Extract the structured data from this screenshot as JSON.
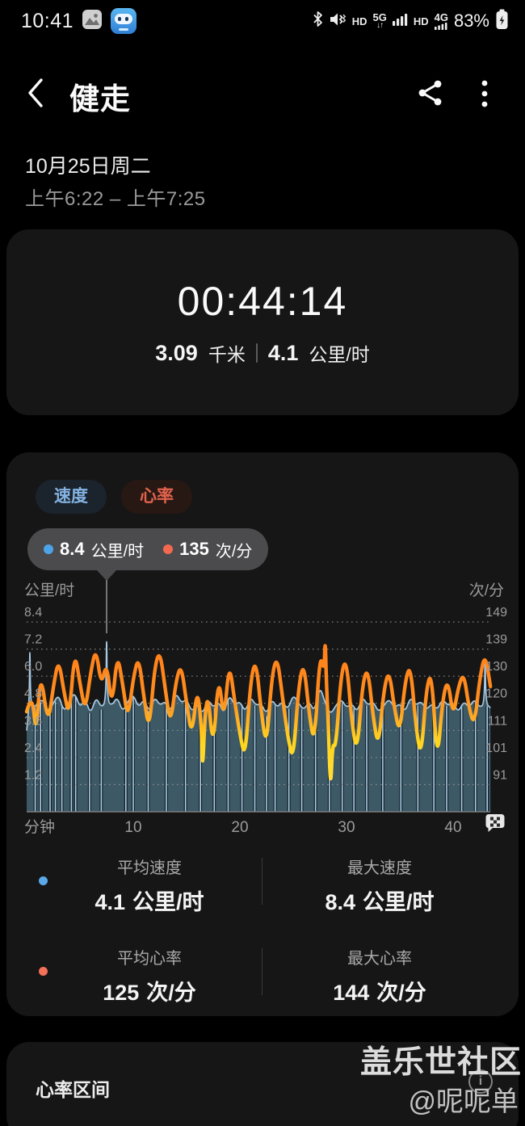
{
  "status_bar": {
    "time": "10:41",
    "battery_percent": "83%",
    "hd1": "HD",
    "net1": "5G",
    "net1_arrows": "↓↑",
    "hd2": "HD",
    "net2": "4G"
  },
  "header": {
    "title": "健走"
  },
  "session": {
    "date": "10月25日周二",
    "time_range": "上午6:22  –  上午7:25"
  },
  "summary": {
    "duration": "00:44:14",
    "distance_value": "3.09",
    "distance_unit": "千米",
    "speed_value": "4.1",
    "speed_unit": "公里/时"
  },
  "chart_card": {
    "tabs": [
      {
        "label": "速度"
      },
      {
        "label": "心率"
      }
    ],
    "tooltip": {
      "speed_value": "8.4",
      "speed_unit": "公里/时",
      "hr_value": "135",
      "hr_unit": "次/分"
    },
    "left_axis_unit": "公里/时",
    "right_axis_unit": "次/分",
    "x_axis_unit": "分钟"
  },
  "chart_data": {
    "type": "line",
    "x_unit": "分钟",
    "x_ticks": [
      "10",
      "20",
      "30",
      "40"
    ],
    "x_range": [
      0,
      43.5
    ],
    "left_axis": {
      "unit": "公里/时",
      "ticks": [
        "8.4",
        "7.2",
        "6.0",
        "4.8",
        "3.6",
        "2.4",
        "1.2"
      ],
      "range": [
        0,
        8.4
      ]
    },
    "right_axis": {
      "unit": "次/分",
      "ticks": [
        "149",
        "139",
        "130",
        "120",
        "111",
        "101",
        "91"
      ],
      "range": [
        81,
        149
      ]
    },
    "legend_position": "top-left-tooltip",
    "grid": "dotted-horizontal",
    "selected_point": {
      "t": 7.5,
      "speed": 8.4,
      "hr": 135
    },
    "series": [
      {
        "name": "速度",
        "unit": "公里/时",
        "color": "#a7cbe8",
        "area_color": "#3d5966",
        "points": [
          [
            0,
            3.6
          ],
          [
            0.24,
            4.5
          ],
          [
            0.3,
            7.9
          ],
          [
            0.36,
            4.4
          ],
          [
            1,
            4.8
          ],
          [
            1.5,
            5.0
          ],
          [
            2,
            4.4
          ],
          [
            2.5,
            4.8
          ],
          [
            3,
            5.2
          ],
          [
            3.5,
            4.4
          ],
          [
            4,
            4.9
          ],
          [
            4.5,
            5.3
          ],
          [
            5,
            4.6
          ],
          [
            5.5,
            5.0
          ],
          [
            6,
            4.3
          ],
          [
            6.5,
            5.1
          ],
          [
            7,
            4.6
          ],
          [
            7.44,
            4.9
          ],
          [
            7.5,
            8.4
          ],
          [
            7.56,
            4.9
          ],
          [
            8,
            4.7
          ],
          [
            8.5,
            5.1
          ],
          [
            9,
            4.4
          ],
          [
            9.5,
            4.9
          ],
          [
            10,
            5.2
          ],
          [
            10.5,
            4.6
          ],
          [
            11,
            5.0
          ],
          [
            11.5,
            4.4
          ],
          [
            12,
            5.1
          ],
          [
            12.5,
            4.7
          ],
          [
            13,
            4.9
          ],
          [
            13.5,
            4.4
          ],
          [
            14,
            5.3
          ],
          [
            14.5,
            4.8
          ],
          [
            15,
            5.0
          ],
          [
            15.5,
            4.4
          ],
          [
            16,
            4.8
          ],
          [
            16.5,
            4.3
          ],
          [
            17,
            5.0
          ],
          [
            17.5,
            4.6
          ],
          [
            18,
            4.9
          ],
          [
            18.5,
            4.3
          ],
          [
            19,
            5.2
          ],
          [
            19.5,
            4.7
          ],
          [
            20,
            4.9
          ],
          [
            20.5,
            4.4
          ],
          [
            21,
            5.1
          ],
          [
            21.5,
            4.7
          ],
          [
            22,
            4.8
          ],
          [
            22.5,
            4.3
          ],
          [
            23,
            5.0
          ],
          [
            23.5,
            4.6
          ],
          [
            24,
            4.9
          ],
          [
            24.5,
            4.5
          ],
          [
            25,
            5.2
          ],
          [
            25.5,
            4.8
          ],
          [
            26,
            4.5
          ],
          [
            26.5,
            4.9
          ],
          [
            27,
            4.4
          ],
          [
            27.5,
            5.6
          ],
          [
            28,
            4.8
          ],
          [
            28.5,
            4.3
          ],
          [
            29,
            4.7
          ],
          [
            29.5,
            5.0
          ],
          [
            30,
            4.6
          ],
          [
            30.5,
            4.8
          ],
          [
            31,
            4.4
          ],
          [
            31.5,
            5.1
          ],
          [
            32,
            4.7
          ],
          [
            32.5,
            4.9
          ],
          [
            33,
            4.4
          ],
          [
            33.5,
            4.7
          ],
          [
            34,
            5.0
          ],
          [
            34.5,
            4.6
          ],
          [
            35,
            4.8
          ],
          [
            35.5,
            4.4
          ],
          [
            36,
            5.1
          ],
          [
            36.5,
            4.7
          ],
          [
            37,
            4.9
          ],
          [
            37.5,
            4.5
          ],
          [
            38,
            4.8
          ],
          [
            38.5,
            4.5
          ],
          [
            39,
            5.0
          ],
          [
            39.5,
            4.7
          ],
          [
            40,
            4.8
          ],
          [
            40.5,
            4.4
          ],
          [
            41,
            4.9
          ],
          [
            41.5,
            4.6
          ],
          [
            42,
            5.0
          ],
          [
            42.5,
            4.6
          ],
          [
            42.94,
            4.8
          ],
          [
            43,
            7.4
          ],
          [
            43.06,
            4.8
          ],
          [
            43.5,
            4.6
          ]
        ],
        "dropout_times": [
          0.8,
          1.3,
          2.2,
          2.7,
          3.3,
          4.2,
          4.6,
          5.9,
          7.0,
          9.3,
          10.0,
          11.4,
          13.1,
          14.9,
          16.3,
          17.6,
          18.9,
          20.2,
          21.4,
          22.5,
          23.3,
          24.6,
          25.8,
          27.1,
          28.4,
          29.6,
          30.7,
          31.9,
          33.4,
          35.1,
          36.7,
          38.2,
          39.4,
          40.8,
          42.1,
          43.2
        ]
      },
      {
        "name": "心率",
        "unit": "次/分",
        "color_high": "#ff8a1e",
        "color_low": "#ffd21e",
        "gradient": [
          [
            "0",
            "#ff7a18"
          ],
          [
            "0.45",
            "#ff8d1e"
          ],
          [
            "0.58",
            "#ffb124"
          ],
          [
            "0.70",
            "#ffd51f"
          ],
          [
            "1",
            "#ffdf42"
          ]
        ],
        "points": [
          [
            0,
            117
          ],
          [
            0.5,
            124
          ],
          [
            0.9,
            108
          ],
          [
            1.3,
            132
          ],
          [
            2,
            112
          ],
          [
            2.5,
            126
          ],
          [
            3,
            136
          ],
          [
            3.5,
            124
          ],
          [
            4,
            115
          ],
          [
            4.5,
            139
          ],
          [
            5,
            127
          ],
          [
            5.5,
            117
          ],
          [
            6,
            131
          ],
          [
            6.5,
            140
          ],
          [
            7,
            126
          ],
          [
            7.5,
            135
          ],
          [
            8,
            118
          ],
          [
            8.5,
            138
          ],
          [
            9,
            127
          ],
          [
            9.5,
            114
          ],
          [
            10,
            129
          ],
          [
            10.5,
            137
          ],
          [
            11,
            122
          ],
          [
            11.5,
            110
          ],
          [
            12,
            133
          ],
          [
            12.5,
            139
          ],
          [
            13,
            125
          ],
          [
            13.5,
            112
          ],
          [
            14,
            128
          ],
          [
            14.5,
            134
          ],
          [
            15,
            120
          ],
          [
            15.5,
            108
          ],
          [
            16,
            126
          ],
          [
            16.4,
            112
          ],
          [
            16.5,
            95
          ],
          [
            16.7,
            114
          ],
          [
            17,
            124
          ],
          [
            17.5,
            103
          ],
          [
            18,
            131
          ],
          [
            18.5,
            113
          ],
          [
            19,
            135
          ],
          [
            19.5,
            121
          ],
          [
            20,
            109
          ],
          [
            20.5,
            100
          ],
          [
            21,
            128
          ],
          [
            21.5,
            136
          ],
          [
            22,
            117
          ],
          [
            22.5,
            104
          ],
          [
            23,
            130
          ],
          [
            23.5,
            137
          ],
          [
            24,
            122
          ],
          [
            24.5,
            108
          ],
          [
            25,
            99
          ],
          [
            25.5,
            126
          ],
          [
            26,
            135
          ],
          [
            26.5,
            116
          ],
          [
            27,
            105
          ],
          [
            27.5,
            138
          ],
          [
            27.9,
            131
          ],
          [
            28,
            144
          ],
          [
            28.1,
            129
          ],
          [
            28.3,
            112
          ],
          [
            28.5,
            88
          ],
          [
            28.7,
            106
          ],
          [
            29,
            104
          ],
          [
            29.5,
            131
          ],
          [
            30,
            136
          ],
          [
            30.5,
            113
          ],
          [
            31,
            102
          ],
          [
            31.5,
            127
          ],
          [
            32,
            133
          ],
          [
            32.5,
            115
          ],
          [
            33,
            104
          ],
          [
            33.5,
            125
          ],
          [
            34,
            132
          ],
          [
            34.5,
            118
          ],
          [
            35,
            109
          ],
          [
            35.5,
            128
          ],
          [
            36,
            134
          ],
          [
            36.5,
            112
          ],
          [
            37,
            100
          ],
          [
            37.5,
            126
          ],
          [
            38,
            131
          ],
          [
            38.5,
            98
          ],
          [
            39,
            121
          ],
          [
            39.5,
            129
          ],
          [
            40,
            115
          ],
          [
            40.5,
            126
          ],
          [
            41,
            131
          ],
          [
            41.5,
            118
          ],
          [
            42,
            112
          ],
          [
            42.5,
            129
          ],
          [
            43,
            138
          ],
          [
            43.5,
            126
          ]
        ]
      }
    ]
  },
  "stats": {
    "rows": [
      {
        "series": "速度",
        "dot_color": "#5ba8e8",
        "cells": [
          {
            "label": "平均速度",
            "value": "4.1",
            "unit": "公里/时"
          },
          {
            "label": "最大速度",
            "value": "8.4",
            "unit": "公里/时"
          }
        ]
      },
      {
        "series": "心率",
        "dot_color": "#f37059",
        "cells": [
          {
            "label": "平均心率",
            "value": "125",
            "unit": "次/分"
          },
          {
            "label": "最大心率",
            "value": "144",
            "unit": "次/分"
          }
        ]
      }
    ]
  },
  "hr_zones_card": {
    "title": "心率区间"
  },
  "watermark": {
    "line1": "盖乐世社区",
    "line2": "@呢呢单"
  },
  "colors": {
    "background": "#000000",
    "card": "#161616",
    "speed_accent": "#5ba8e8",
    "hr_accent": "#f37059",
    "hr_line_high": "#ff8a1e",
    "hr_line_low": "#ffd21e",
    "speed_line": "#a7cbe8",
    "speed_area": "#3d5966",
    "tooltip_bg": "#4b4b4d",
    "selection_line": "#8f8f8f"
  }
}
